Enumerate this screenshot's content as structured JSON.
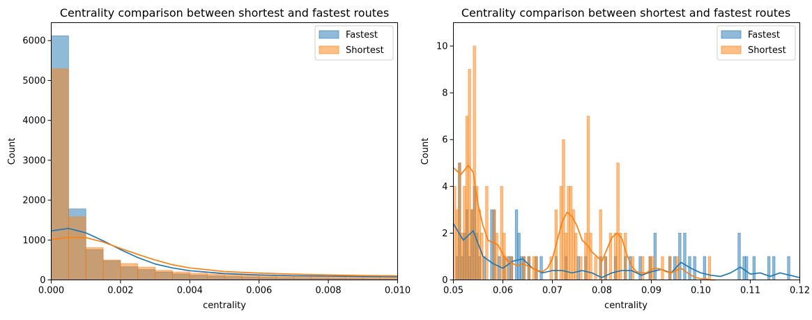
{
  "colors": {
    "fastest": "#1f77b4",
    "shortest": "#ff7f0e",
    "overlap": "#c49a6c"
  },
  "chart_data": [
    {
      "type": "histogram",
      "title": "Centrality comparison between shortest and fastest routes",
      "xlabel": "centrality",
      "ylabel": "Count",
      "xlim": [
        0,
        0.01
      ],
      "ylim": [
        0,
        6450
      ],
      "xticks": [
        "0.000",
        "0.002",
        "0.004",
        "0.006",
        "0.008",
        "0.010"
      ],
      "xtick_values": [
        0,
        0.002,
        0.004,
        0.006,
        0.008,
        0.01
      ],
      "yticks": [
        "0",
        "1000",
        "2000",
        "3000",
        "4000",
        "5000",
        "6000"
      ],
      "ytick_values": [
        0,
        1000,
        2000,
        3000,
        4000,
        5000,
        6000
      ],
      "legend": {
        "position": "top-right",
        "entries": [
          "Fastest",
          "Shortest"
        ]
      },
      "bin_width": 0.0005,
      "bin_edges_start": 0,
      "series": [
        {
          "name": "Fastest",
          "values": [
            6120,
            1780,
            760,
            480,
            330,
            260,
            200,
            150,
            120,
            100,
            85,
            75,
            65,
            55,
            50,
            45,
            40,
            35,
            30,
            28
          ],
          "kde_x": [
            0,
            0.0005,
            0.001,
            0.0015,
            0.002,
            0.0025,
            0.003,
            0.0035,
            0.004,
            0.005,
            0.006,
            0.007,
            0.008,
            0.009,
            0.01
          ],
          "kde_y": [
            1230,
            1290,
            1180,
            980,
            760,
            560,
            400,
            300,
            230,
            160,
            125,
            105,
            95,
            85,
            78
          ]
        },
        {
          "name": "Shortest",
          "values": [
            5290,
            1580,
            810,
            500,
            410,
            320,
            240,
            200,
            170,
            150,
            130,
            115,
            100,
            90,
            85,
            80,
            75,
            70,
            65,
            60
          ],
          "kde_x": [
            0,
            0.0005,
            0.001,
            0.0015,
            0.002,
            0.0025,
            0.003,
            0.0035,
            0.004,
            0.005,
            0.006,
            0.007,
            0.008,
            0.009,
            0.01
          ],
          "kde_y": [
            1010,
            1070,
            1060,
            950,
            790,
            640,
            500,
            380,
            300,
            210,
            170,
            145,
            125,
            110,
            100
          ]
        }
      ]
    },
    {
      "type": "histogram",
      "title": "Centrality comparison between shortest and fastest routes",
      "xlabel": "centrality",
      "ylabel": "Count",
      "xlim": [
        0.05,
        0.12
      ],
      "ylim": [
        0,
        11
      ],
      "xticks": [
        "0.05",
        "0.06",
        "0.07",
        "0.08",
        "0.09",
        "0.10",
        "0.11",
        "0.12"
      ],
      "xtick_values": [
        0.05,
        0.06,
        0.07,
        0.08,
        0.09,
        0.1,
        0.11,
        0.12
      ],
      "yticks": [
        "0",
        "2",
        "4",
        "6",
        "8",
        "10"
      ],
      "ytick_values": [
        0,
        2,
        4,
        6,
        8,
        10
      ],
      "legend": {
        "position": "top-right",
        "entries": [
          "Fastest",
          "Shortest"
        ]
      },
      "bin_width": 0.0005,
      "series": [
        {
          "name": "Fastest",
          "bins": [
            [
              0.0505,
              1
            ],
            [
              0.051,
              5
            ],
            [
              0.0515,
              1
            ],
            [
              0.052,
              2
            ],
            [
              0.0525,
              3
            ],
            [
              0.053,
              1
            ],
            [
              0.0535,
              3
            ],
            [
              0.054,
              4
            ],
            [
              0.0545,
              2
            ],
            [
              0.055,
              1
            ],
            [
              0.056,
              1
            ],
            [
              0.0575,
              3
            ],
            [
              0.058,
              3
            ],
            [
              0.059,
              1
            ],
            [
              0.06,
              1
            ],
            [
              0.061,
              1
            ],
            [
              0.0615,
              1
            ],
            [
              0.0625,
              3
            ],
            [
              0.063,
              2
            ],
            [
              0.0635,
              1
            ],
            [
              0.064,
              1
            ],
            [
              0.065,
              1
            ],
            [
              0.0665,
              1
            ],
            [
              0.0675,
              1
            ],
            [
              0.0705,
              1
            ],
            [
              0.0725,
              1
            ],
            [
              0.075,
              1
            ],
            [
              0.0765,
              1
            ],
            [
              0.0795,
              1
            ],
            [
              0.0805,
              1
            ],
            [
              0.0825,
              1
            ],
            [
              0.0845,
              1
            ],
            [
              0.0855,
              1
            ],
            [
              0.0875,
              1
            ],
            [
              0.0895,
              1
            ],
            [
              0.0905,
              2
            ],
            [
              0.0935,
              1
            ],
            [
              0.0945,
              1
            ],
            [
              0.0955,
              2
            ],
            [
              0.0965,
              2
            ],
            [
              0.0975,
              1
            ],
            [
              0.0985,
              1
            ],
            [
              0.1005,
              1
            ],
            [
              0.1075,
              2
            ],
            [
              0.1085,
              1
            ],
            [
              0.109,
              1
            ],
            [
              0.1105,
              1
            ],
            [
              0.1135,
              1
            ],
            [
              0.1145,
              1
            ],
            [
              0.1175,
              1
            ]
          ],
          "kde_x": [
            0.05,
            0.052,
            0.054,
            0.056,
            0.058,
            0.06,
            0.062,
            0.064,
            0.066,
            0.068,
            0.07,
            0.072,
            0.074,
            0.076,
            0.078,
            0.08,
            0.082,
            0.084,
            0.086,
            0.088,
            0.09,
            0.092,
            0.094,
            0.096,
            0.098,
            0.1,
            0.102,
            0.104,
            0.106,
            0.108,
            0.11,
            0.112,
            0.114,
            0.116,
            0.118,
            0.12
          ],
          "kde_y": [
            2.4,
            1.7,
            2.1,
            1.0,
            0.7,
            0.5,
            0.8,
            0.9,
            0.5,
            0.3,
            0.4,
            0.4,
            0.3,
            0.4,
            0.3,
            0.1,
            0.3,
            0.4,
            0.4,
            0.2,
            0.35,
            0.45,
            0.3,
            0.75,
            0.5,
            0.3,
            0.2,
            0.15,
            0.3,
            0.55,
            0.25,
            0.3,
            0.15,
            0.3,
            0.2,
            0.1
          ]
        },
        {
          "name": "Shortest",
          "bins": [
            [
              0.05,
              4
            ],
            [
              0.0505,
              3
            ],
            [
              0.051,
              5
            ],
            [
              0.0515,
              2
            ],
            [
              0.052,
              4
            ],
            [
              0.0525,
              7
            ],
            [
              0.053,
              9
            ],
            [
              0.0535,
              3
            ],
            [
              0.054,
              10
            ],
            [
              0.0545,
              4
            ],
            [
              0.055,
              3
            ],
            [
              0.0555,
              2
            ],
            [
              0.0565,
              4
            ],
            [
              0.058,
              3
            ],
            [
              0.0585,
              2
            ],
            [
              0.0595,
              4
            ],
            [
              0.06,
              2
            ],
            [
              0.0605,
              1
            ],
            [
              0.0615,
              1
            ],
            [
              0.064,
              1
            ],
            [
              0.065,
              1
            ],
            [
              0.066,
              1
            ],
            [
              0.0665,
              1
            ],
            [
              0.0695,
              1
            ],
            [
              0.0705,
              3
            ],
            [
              0.0715,
              4
            ],
            [
              0.072,
              6
            ],
            [
              0.0725,
              2
            ],
            [
              0.073,
              4
            ],
            [
              0.0735,
              4
            ],
            [
              0.074,
              3
            ],
            [
              0.0745,
              2
            ],
            [
              0.0755,
              1
            ],
            [
              0.0765,
              2
            ],
            [
              0.077,
              7
            ],
            [
              0.0775,
              2
            ],
            [
              0.0785,
              1
            ],
            [
              0.0795,
              3
            ],
            [
              0.0805,
              1
            ],
            [
              0.0815,
              2
            ],
            [
              0.0825,
              2
            ],
            [
              0.083,
              5
            ],
            [
              0.0835,
              2
            ],
            [
              0.0845,
              2
            ],
            [
              0.086,
              1
            ],
            [
              0.088,
              1
            ],
            [
              0.0895,
              1
            ],
            [
              0.09,
              1
            ],
            [
              0.092,
              1
            ],
            [
              0.0935,
              1
            ],
            [
              0.095,
              1
            ],
            [
              0.1015,
              1
            ]
          ],
          "kde_x": [
            0.05,
            0.0515,
            0.053,
            0.054,
            0.055,
            0.056,
            0.057,
            0.058,
            0.059,
            0.06,
            0.061,
            0.062,
            0.063,
            0.064,
            0.065,
            0.066,
            0.067,
            0.068,
            0.069,
            0.07,
            0.071,
            0.072,
            0.073,
            0.074,
            0.075,
            0.076,
            0.077,
            0.078,
            0.079,
            0.08,
            0.081,
            0.082,
            0.083,
            0.084,
            0.085,
            0.086,
            0.087,
            0.088,
            0.089,
            0.09,
            0.091,
            0.092,
            0.093,
            0.094,
            0.095,
            0.096,
            0.097,
            0.098,
            0.099,
            0.1,
            0.101,
            0.102,
            0.103
          ],
          "kde_y": [
            4.8,
            4.5,
            4.9,
            4.6,
            3.2,
            2.3,
            1.7,
            1.6,
            1.5,
            1.1,
            0.8,
            0.7,
            0.6,
            0.7,
            0.6,
            0.5,
            0.4,
            0.35,
            0.5,
            0.9,
            1.7,
            2.5,
            2.9,
            2.7,
            2.3,
            1.7,
            1.5,
            1.2,
            1.0,
            0.8,
            1.3,
            1.8,
            2.0,
            1.8,
            1.1,
            0.6,
            0.35,
            0.3,
            0.3,
            0.45,
            0.5,
            0.45,
            0.35,
            0.3,
            0.4,
            0.5,
            0.35,
            0.2,
            0.1,
            0.05,
            0.05,
            0.0,
            0.0
          ]
        }
      ]
    }
  ]
}
